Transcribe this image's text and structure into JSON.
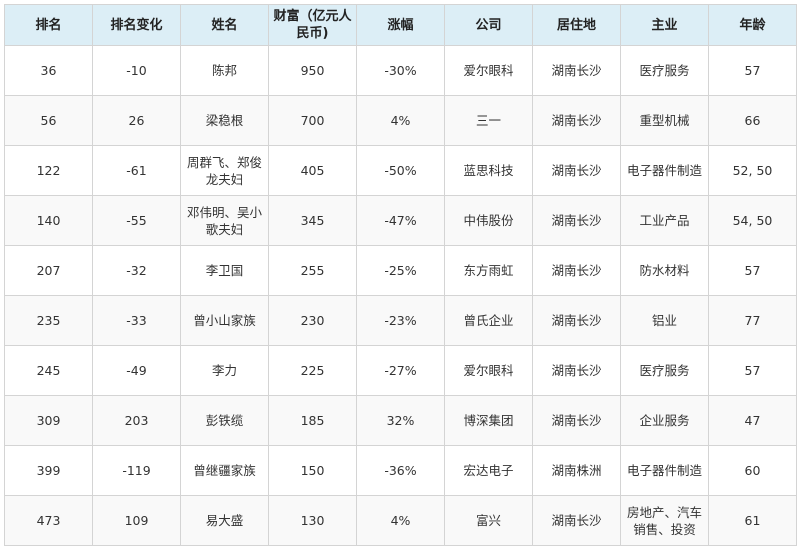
{
  "headers": [
    "排名",
    "排名变化",
    "姓名",
    "财富（亿元人民币)",
    "涨幅",
    "公司",
    "居住地",
    "主业",
    "年龄"
  ],
  "rows": [
    [
      "36",
      "-10",
      "陈邦",
      "950",
      "-30%",
      "爱尔眼科",
      "湖南长沙",
      "医疗服务",
      "57"
    ],
    [
      "56",
      "26",
      "梁稳根",
      "700",
      "4%",
      "三一",
      "湖南长沙",
      "重型机械",
      "66"
    ],
    [
      "122",
      "-61",
      "周群飞、郑俊龙夫妇",
      "405",
      "-50%",
      "蓝思科技",
      "湖南长沙",
      "电子器件制造",
      "52, 50"
    ],
    [
      "140",
      "-55",
      "邓伟明、吴小歌夫妇",
      "345",
      "-47%",
      "中伟股份",
      "湖南长沙",
      "工业产品",
      "54, 50"
    ],
    [
      "207",
      "-32",
      "李卫国",
      "255",
      "-25%",
      "东方雨虹",
      "湖南长沙",
      "防水材料",
      "57"
    ],
    [
      "235",
      "-33",
      "曾小山家族",
      "230",
      "-23%",
      "曾氏企业",
      "湖南长沙",
      "铝业",
      "77"
    ],
    [
      "245",
      "-49",
      "李力",
      "225",
      "-27%",
      "爱尔眼科",
      "湖南长沙",
      "医疗服务",
      "57"
    ],
    [
      "309",
      "203",
      "彭铁缆",
      "185",
      "32%",
      "博深集团",
      "湖南长沙",
      "企业服务",
      "47"
    ],
    [
      "399",
      "-119",
      "曾继疆家族",
      "150",
      "-36%",
      "宏达电子",
      "湖南株洲",
      "电子器件制造",
      "60"
    ],
    [
      "473",
      "109",
      "易大盛",
      "130",
      "4%",
      "富兴",
      "湖南长沙",
      "房地产、汽车销售、投资",
      "61"
    ]
  ]
}
